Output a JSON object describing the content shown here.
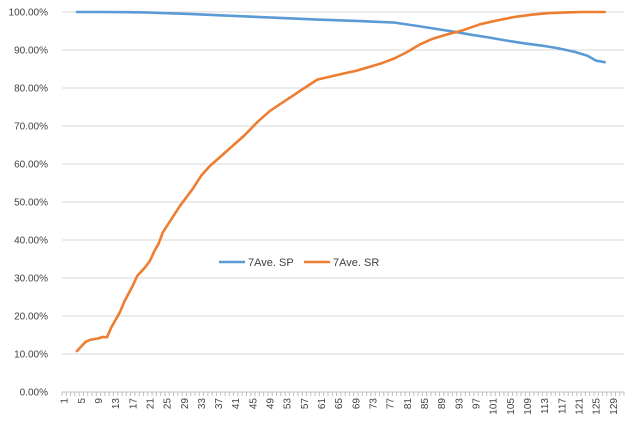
{
  "chart_data": {
    "type": "line",
    "title": "",
    "xlabel": "",
    "ylabel": "",
    "x": {
      "min": 1,
      "max": 131,
      "tick_step": 4,
      "tick_start": 1
    },
    "ylim": [
      0,
      1
    ],
    "y_tick_step": 0.1,
    "y_tick_format": "percent_2dp",
    "gridlines": true,
    "legend_position": "center",
    "series": [
      {
        "name": "7Ave. SP",
        "color": "#5B9BD5",
        "points": [
          [
            4,
            1.0
          ],
          [
            10,
            1.0
          ],
          [
            20,
            0.999
          ],
          [
            30,
            0.995
          ],
          [
            40,
            0.99
          ],
          [
            50,
            0.985
          ],
          [
            60,
            0.98
          ],
          [
            70,
            0.976
          ],
          [
            78,
            0.972
          ],
          [
            84,
            0.962
          ],
          [
            88,
            0.955
          ],
          [
            92,
            0.948
          ],
          [
            96,
            0.94
          ],
          [
            100,
            0.933
          ],
          [
            104,
            0.925
          ],
          [
            108,
            0.918
          ],
          [
            112,
            0.912
          ],
          [
            116,
            0.905
          ],
          [
            120,
            0.895
          ],
          [
            123,
            0.885
          ],
          [
            125,
            0.872
          ],
          [
            127,
            0.868
          ]
        ]
      },
      {
        "name": "7Ave. SR",
        "color": "#ED7D31",
        "points": [
          [
            4,
            0.108
          ],
          [
            5,
            0.12
          ],
          [
            6,
            0.132
          ],
          [
            7,
            0.137
          ],
          [
            9,
            0.141
          ],
          [
            10,
            0.145
          ],
          [
            11,
            0.144
          ],
          [
            12,
            0.17
          ],
          [
            13,
            0.19
          ],
          [
            14,
            0.21
          ],
          [
            15,
            0.237
          ],
          [
            17,
            0.28
          ],
          [
            18,
            0.305
          ],
          [
            20,
            0.33
          ],
          [
            21,
            0.345
          ],
          [
            22,
            0.37
          ],
          [
            23,
            0.39
          ],
          [
            24,
            0.42
          ],
          [
            26,
            0.455
          ],
          [
            28,
            0.49
          ],
          [
            31,
            0.535
          ],
          [
            33,
            0.57
          ],
          [
            35,
            0.595
          ],
          [
            38,
            0.625
          ],
          [
            40,
            0.645
          ],
          [
            43,
            0.675
          ],
          [
            46,
            0.71
          ],
          [
            49,
            0.74
          ],
          [
            53,
            0.77
          ],
          [
            57,
            0.8
          ],
          [
            60,
            0.822
          ],
          [
            63,
            0.83
          ],
          [
            66,
            0.838
          ],
          [
            69,
            0.845
          ],
          [
            72,
            0.855
          ],
          [
            75,
            0.865
          ],
          [
            78,
            0.878
          ],
          [
            81,
            0.895
          ],
          [
            84,
            0.915
          ],
          [
            87,
            0.93
          ],
          [
            90,
            0.94
          ],
          [
            94,
            0.952
          ],
          [
            98,
            0.968
          ],
          [
            102,
            0.978
          ],
          [
            106,
            0.987
          ],
          [
            110,
            0.993
          ],
          [
            114,
            0.997
          ],
          [
            118,
            0.999
          ],
          [
            122,
            1.0
          ],
          [
            127,
            1.0
          ]
        ]
      }
    ]
  }
}
